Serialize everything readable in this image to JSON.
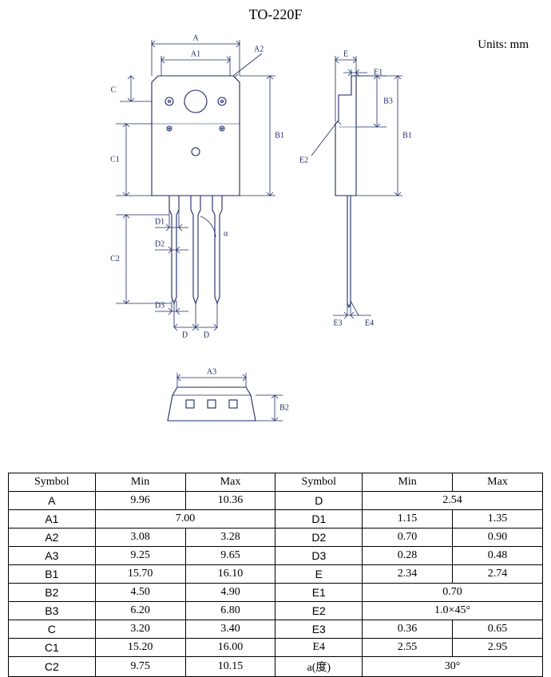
{
  "title": "TO-220F",
  "units_label": "Units: mm",
  "stroke": "#1a2a66",
  "dim_stroke": "#1a2a66",
  "text_color": "#000000",
  "stroke_width": 1.1,
  "dim_stroke_width": 0.8,
  "font_family": "Times New Roman",
  "title_fontsize": 18,
  "units_fontsize": 15,
  "svg_label_fontsize": 10,
  "table_fontsize": 14,
  "labels": {
    "A": "A",
    "A1": "A1",
    "A2": "A2",
    "A3": "A3",
    "B1": "B1",
    "B2": "B2",
    "B3": "B3",
    "C": "C",
    "C1": "C1",
    "C2": "C2",
    "D": "D",
    "D1": "D1",
    "D2": "D2",
    "D3": "D3",
    "E": "E",
    "E1": "E1",
    "E2": "E2",
    "E3": "E3",
    "E4": "E4",
    "alpha": "α"
  },
  "table": {
    "headers": {
      "symbol": "Symbol",
      "min": "Min",
      "max": "Max"
    },
    "rows_left": [
      {
        "sym": "A",
        "min": "9.96",
        "max": "10.36",
        "bold": true
      },
      {
        "sym": "A1",
        "span": "7.00",
        "bold": true
      },
      {
        "sym": "A2",
        "min": "3.08",
        "max": "3.28",
        "bold": true
      },
      {
        "sym": "A3",
        "min": "9.25",
        "max": "9.65",
        "bold": true
      },
      {
        "sym": "B1",
        "min": "15.70",
        "max": "16.10",
        "bold": true
      },
      {
        "sym": "B2",
        "min": "4.50",
        "max": "4.90",
        "bold": true
      },
      {
        "sym": "B3",
        "min": "6.20",
        "max": "6.80",
        "bold": true
      },
      {
        "sym": "C",
        "min": "3.20",
        "max": "3.40",
        "bold": true
      },
      {
        "sym": "C1",
        "min": "15.20",
        "max": "16.00",
        "bold": true
      },
      {
        "sym": "C2",
        "min": "9.75",
        "max": "10.15",
        "bold": true
      }
    ],
    "rows_right": [
      {
        "sym": "D",
        "span": "2.54",
        "bold": true
      },
      {
        "sym": "D1",
        "min": "1.15",
        "max": "1.35",
        "bold": true
      },
      {
        "sym": "D2",
        "min": "0.70",
        "max": "0.90",
        "bold": true
      },
      {
        "sym": "D3",
        "min": "0.28",
        "max": "0.48",
        "bold": true
      },
      {
        "sym": "E",
        "min": "2.34",
        "max": "2.74",
        "bold": true
      },
      {
        "sym": "E1",
        "span": "0.70",
        "bold": true
      },
      {
        "sym": "E2",
        "span": "1.0×45°",
        "bold": true
      },
      {
        "sym": "E3",
        "min": "0.36",
        "max": "0.65",
        "bold": true
      },
      {
        "sym": "E4",
        "min": "2.55",
        "max": "2.95",
        "bold": false
      },
      {
        "sym": "a(度)",
        "span": "30°",
        "bold": false
      }
    ]
  }
}
